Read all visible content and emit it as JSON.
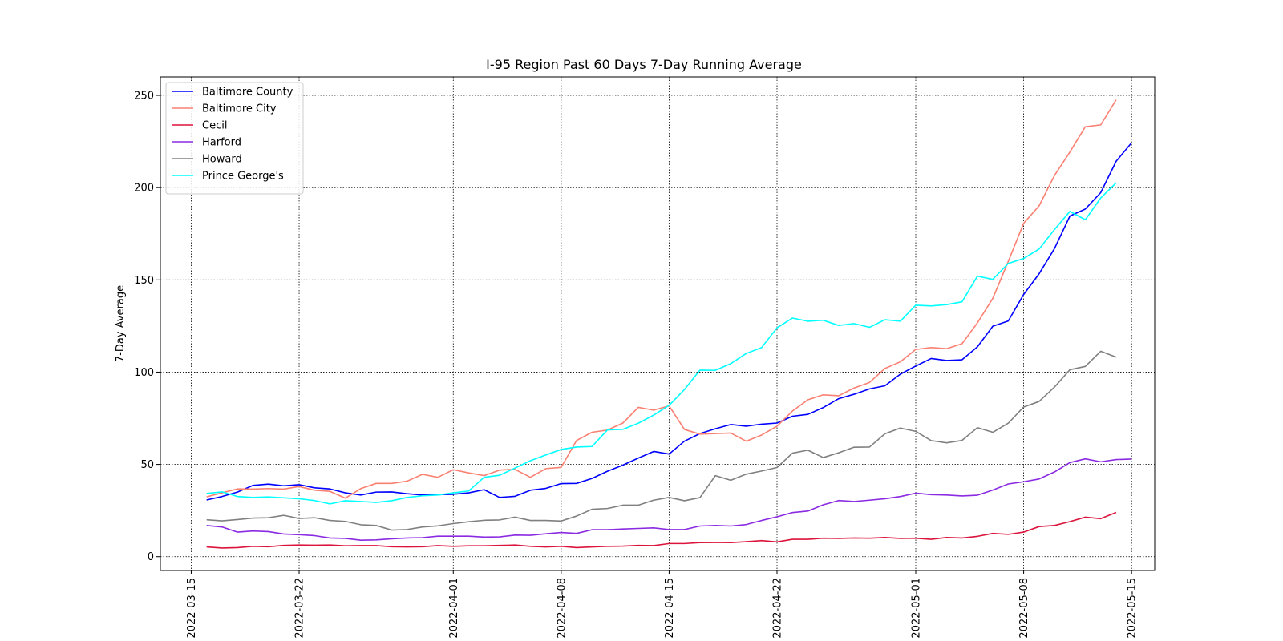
{
  "chart_data": {
    "type": "line",
    "title": "I-95 Region Past 60 Days 7-Day Running Average",
    "xlabel": "",
    "ylabel": "7-Day Average",
    "x_start": "2022-03-16",
    "x_ticks": [
      "2022-03-15",
      "2022-03-22",
      "2022-04-01",
      "2022-04-08",
      "2022-04-15",
      "2022-04-22",
      "2022-05-01",
      "2022-05-08",
      "2022-05-15"
    ],
    "y_ticks": [
      0,
      50,
      100,
      150,
      200,
      250
    ],
    "xlim": [
      "2022-03-13",
      "2022-05-16.5"
    ],
    "ylim": [
      -7.5,
      260
    ],
    "grid": true,
    "legend_position": "upper-left",
    "series": [
      {
        "name": "Baltimore County",
        "color": "#0000ff",
        "values": [
          30.7,
          32.6,
          35.0,
          38.6,
          39.3,
          38.4,
          39.0,
          37.3,
          36.7,
          34.6,
          33.4,
          35.0,
          35.1,
          34.1,
          33.4,
          33.6,
          33.8,
          34.6,
          36.3,
          32.1,
          32.7,
          36.0,
          37.0,
          39.6,
          39.7,
          42.4,
          46.3,
          49.6,
          53.4,
          57.0,
          55.6,
          62.6,
          66.7,
          69.3,
          71.6,
          70.7,
          71.8,
          72.4,
          76.1,
          77.1,
          80.8,
          85.6,
          88.0,
          90.9,
          92.6,
          98.9,
          103.3,
          107.4,
          106.3,
          106.7,
          113.7,
          124.9,
          127.7,
          142.1,
          153.3,
          167.0,
          184.6,
          188.4,
          197.3,
          214.3,
          224.3
        ]
      },
      {
        "name": "Baltimore City",
        "color": "#fa8072",
        "values": [
          32.4,
          34.6,
          36.7,
          36.6,
          36.9,
          36.6,
          38.0,
          36.0,
          35.4,
          31.7,
          36.9,
          39.7,
          39.7,
          40.9,
          44.6,
          43.0,
          47.1,
          45.4,
          43.9,
          46.9,
          47.3,
          43.0,
          47.7,
          48.4,
          63.0,
          67.4,
          68.6,
          72.4,
          80.9,
          79.4,
          81.7,
          68.9,
          66.4,
          66.7,
          67.0,
          62.6,
          65.9,
          70.7,
          78.9,
          85.0,
          87.7,
          87.2,
          91.4,
          94.4,
          102.0,
          105.6,
          112.3,
          113.3,
          112.7,
          115.4,
          126.7,
          140.0,
          160.0,
          180.7,
          190.1,
          206.6,
          219.3,
          233.0,
          234.0,
          247.6
        ]
      },
      {
        "name": "Cecil",
        "color": "#dc143c",
        "values": [
          5.3,
          4.7,
          4.9,
          5.6,
          5.4,
          6.1,
          6.3,
          6.2,
          6.3,
          5.9,
          6.0,
          6.0,
          5.4,
          5.3,
          5.4,
          6.0,
          5.6,
          5.9,
          5.9,
          6.1,
          6.3,
          5.6,
          5.3,
          5.6,
          4.9,
          5.3,
          5.6,
          5.7,
          6.1,
          6.0,
          7.1,
          7.1,
          7.6,
          7.7,
          7.6,
          8.1,
          8.7,
          8.0,
          9.4,
          9.4,
          10.0,
          9.9,
          10.1,
          10.0,
          10.4,
          9.9,
          10.0,
          9.4,
          10.4,
          10.1,
          11.0,
          12.6,
          12.1,
          13.3,
          16.3,
          16.9,
          19.0,
          21.4,
          20.6,
          24.0
        ]
      },
      {
        "name": "Harford",
        "color": "#8a2be2",
        "values": [
          16.9,
          16.1,
          13.3,
          13.9,
          13.6,
          12.3,
          11.9,
          11.4,
          10.1,
          9.9,
          8.9,
          9.1,
          9.7,
          10.1,
          10.3,
          11.1,
          11.1,
          11.1,
          10.6,
          10.7,
          11.7,
          11.6,
          12.4,
          13.1,
          12.6,
          14.6,
          14.6,
          15.0,
          15.3,
          15.6,
          14.7,
          14.7,
          16.6,
          16.9,
          16.6,
          17.4,
          19.6,
          21.6,
          23.9,
          24.7,
          28.1,
          30.4,
          29.9,
          30.6,
          31.4,
          32.6,
          34.4,
          33.6,
          33.4,
          32.9,
          33.3,
          36.1,
          39.4,
          40.6,
          42.1,
          45.9,
          51.0,
          53.0,
          51.4,
          52.6,
          52.9
        ]
      },
      {
        "name": "Howard",
        "color": "#808080",
        "values": [
          20.0,
          19.4,
          20.1,
          20.9,
          21.1,
          22.4,
          20.7,
          21.1,
          19.6,
          19.1,
          17.3,
          16.9,
          14.4,
          14.7,
          16.1,
          16.7,
          17.9,
          18.9,
          19.7,
          19.9,
          21.4,
          19.6,
          19.6,
          19.3,
          22.0,
          25.7,
          26.1,
          27.9,
          27.9,
          30.6,
          32.1,
          30.3,
          32.0,
          43.9,
          41.4,
          44.7,
          46.4,
          48.3,
          56.1,
          57.7,
          53.7,
          56.3,
          59.3,
          59.4,
          66.6,
          69.7,
          67.9,
          62.9,
          61.7,
          63.0,
          69.9,
          67.4,
          72.3,
          81.1,
          84.1,
          91.9,
          101.3,
          103.1,
          111.3,
          108.1
        ]
      },
      {
        "name": "Prince George's",
        "color": "#00ffff",
        "values": [
          34.3,
          35.1,
          32.6,
          32.1,
          32.4,
          31.9,
          31.4,
          30.4,
          28.6,
          30.3,
          29.9,
          29.4,
          30.3,
          32.1,
          33.0,
          33.4,
          34.6,
          35.6,
          43.0,
          44.1,
          48.0,
          52.0,
          55.1,
          58.1,
          59.4,
          59.7,
          68.7,
          69.0,
          72.3,
          76.7,
          82.0,
          90.6,
          101.1,
          101.0,
          104.6,
          110.1,
          113.3,
          124.0,
          129.3,
          127.6,
          128.1,
          125.3,
          126.3,
          124.3,
          128.4,
          127.6,
          136.3,
          135.9,
          136.6,
          138.1,
          152.0,
          150.3,
          158.9,
          161.6,
          166.7,
          177.3,
          187.1,
          182.6,
          194.4,
          202.6
        ]
      }
    ]
  }
}
